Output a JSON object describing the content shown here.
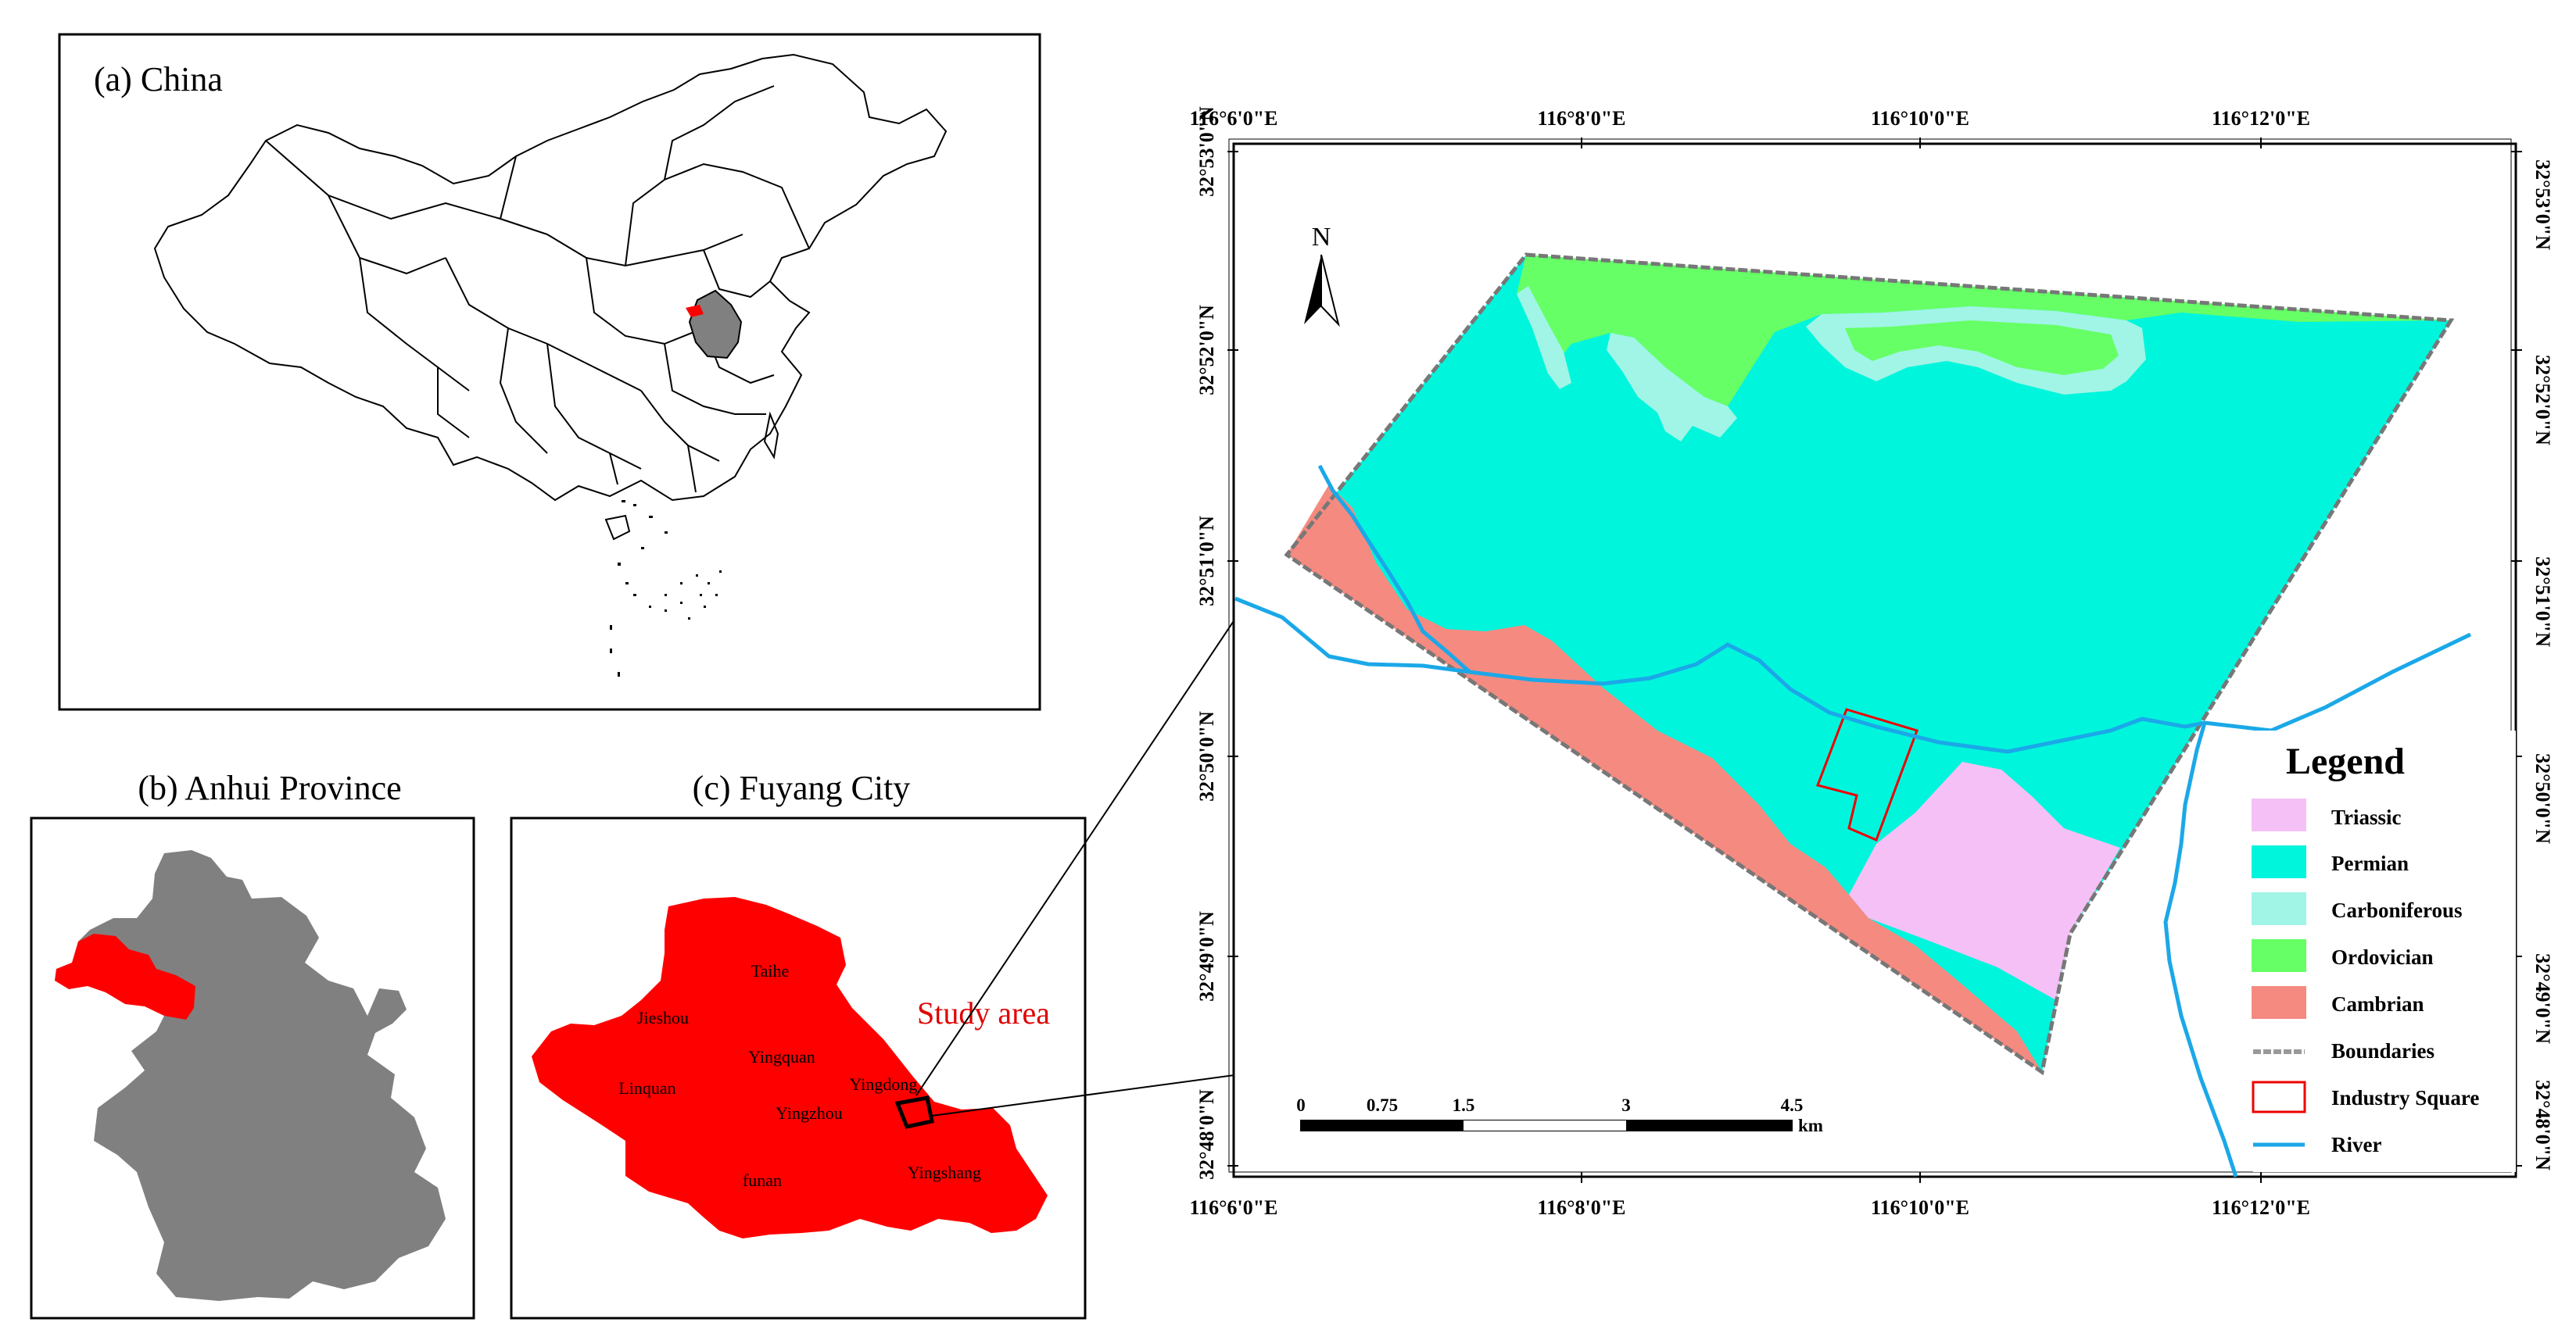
{
  "panels": {
    "china": {
      "label": "(a) China"
    },
    "anhui": {
      "label": "(b) Anhui Province"
    },
    "fuyang": {
      "label": "(c) Fuyang City",
      "study_area_label": "Study area"
    }
  },
  "fuyang_districts": [
    "Taihe",
    "Jieshou",
    "Yingquan",
    "Linquan",
    "Yingdong",
    "Yingzhou",
    "funan",
    "Yingshang"
  ],
  "main_map": {
    "longitude_ticks": [
      "116°6'0\"E",
      "116°8'0\"E",
      "116°10'0\"E",
      "116°12'0\"E"
    ],
    "latitude_ticks": [
      "32°53'0\"N",
      "32°52'0\"N",
      "32°51'0\"N",
      "32°50'0\"N",
      "32°49'0\"N",
      "32°48'0\"N"
    ],
    "north_label": "N",
    "scale": {
      "ticks": [
        "0",
        "0.75",
        "1.5",
        "3",
        "4.5"
      ],
      "unit": "km"
    }
  },
  "legend": {
    "title": "Legend",
    "items": [
      {
        "label": "Triassic",
        "color": "#f5c0f5",
        "kind": "fill"
      },
      {
        "label": "Permian",
        "color": "#00f5dd",
        "kind": "fill"
      },
      {
        "label": "Carboniferous",
        "color": "#a0f5e6",
        "kind": "fill"
      },
      {
        "label": "Ordovician",
        "color": "#66ff66",
        "kind": "fill"
      },
      {
        "label": "Cambrian",
        "color": "#f58a80",
        "kind": "fill"
      },
      {
        "label": "Boundaries",
        "color": "#999999",
        "kind": "boundary"
      },
      {
        "label": "Industry Square",
        "color": "#ee0000",
        "kind": "outline"
      },
      {
        "label": "River",
        "color": "#1ba8e8",
        "kind": "line"
      }
    ]
  },
  "colors": {
    "anhui_fill": "#808080",
    "highlight": "#ff0000",
    "river": "#1ba8e8"
  }
}
